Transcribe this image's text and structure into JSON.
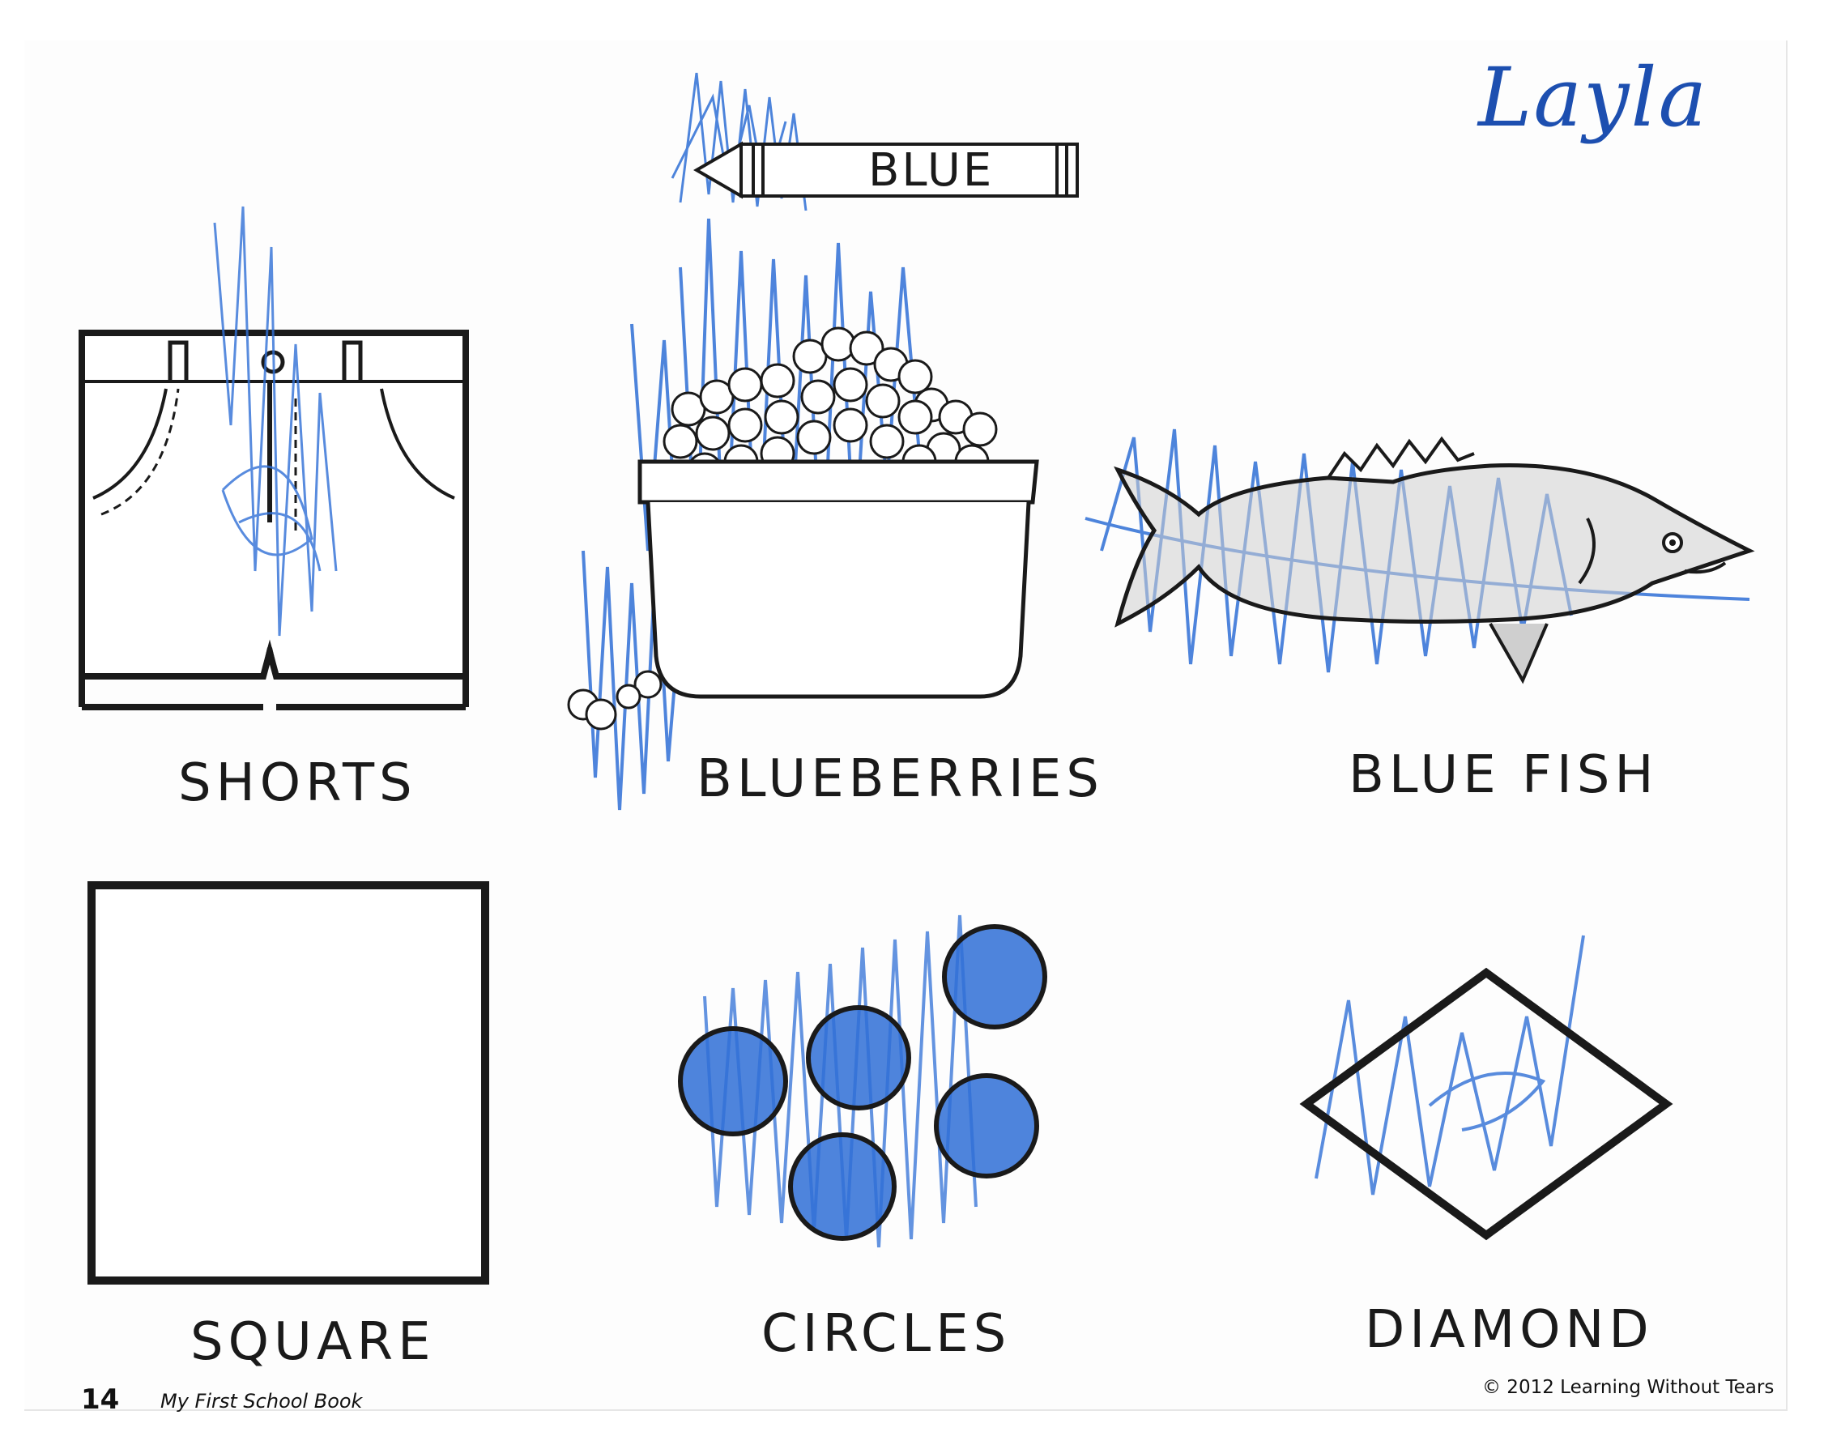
{
  "header": {
    "name": "Layla",
    "crayon_label": "BLUE"
  },
  "items": [
    {
      "label": "SHORTS",
      "icon": "shorts-icon"
    },
    {
      "label": "BLUEBERRIES",
      "icon": "blueberries-icon"
    },
    {
      "label": "BLUE FISH",
      "icon": "fish-icon"
    },
    {
      "label": "SQUARE",
      "icon": "square-icon"
    },
    {
      "label": "CIRCLES",
      "icon": "circles-icon"
    },
    {
      "label": "DIAMOND",
      "icon": "diamond-icon"
    }
  ],
  "footer": {
    "page_number": "14",
    "book_title": "My First School Book",
    "copyright": "© 2012 Learning Without Tears"
  },
  "colors": {
    "crayon_blue": "#2f6fd6",
    "ink": "#1a1a1a",
    "name_blue": "#1d4fb0"
  }
}
